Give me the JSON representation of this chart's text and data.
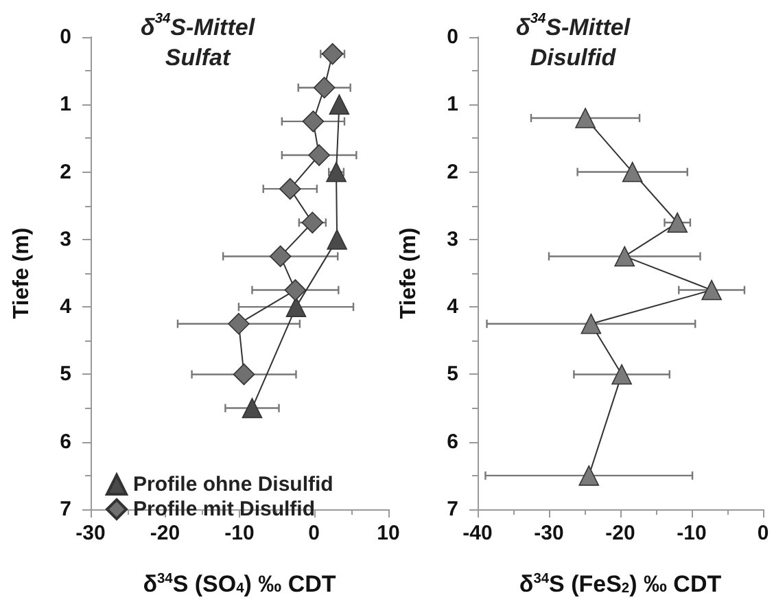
{
  "chart_data": [
    {
      "type": "line",
      "title": "δ$^{34}$S-Mittel",
      "subtitle": "Sulfat",
      "xlabel": "δ$^{34}$S (SO$_{4}$) ‰ CDT",
      "ylabel": "Tiefe (m)",
      "xlim": [
        -30,
        10
      ],
      "xticks": [
        -30,
        -20,
        -10,
        0,
        10
      ],
      "ylim": [
        7,
        0
      ],
      "yticks": [
        0,
        1,
        2,
        3,
        4,
        5,
        6,
        7
      ],
      "grid": false,
      "legend": "bottom left",
      "series": [
        {
          "name": "Profile ohne Disulfid",
          "color": "#4a4a4a",
          "marker": "triangle",
          "x": [
            3.4,
            3.0,
            3.1,
            -2.4,
            -8.3
          ],
          "values": [
            1.0,
            2.0,
            3.0,
            4.0,
            5.5
          ],
          "xerrors": [
            null,
            1.0,
            null,
            7.7,
            3.6
          ]
        },
        {
          "name": "Profile mit Disulfid",
          "color": "#707070",
          "marker": "diamond",
          "x": [
            2.5,
            1.4,
            -0.1,
            0.7,
            -3.2,
            -0.2,
            -4.5,
            -2.5,
            -10.1,
            -9.4
          ],
          "values": [
            0.25,
            0.75,
            1.25,
            1.75,
            2.25,
            2.75,
            3.25,
            3.75,
            4.25,
            5.0
          ],
          "xerrors": [
            1.6,
            3.5,
            4.2,
            5.0,
            3.6,
            1.8,
            7.7,
            5.8,
            8.2,
            7.0
          ]
        }
      ]
    },
    {
      "type": "line",
      "title": "δ$^{34}$S-Mittel",
      "subtitle": "Disulfid",
      "xlabel": "δ$^{34}$S (FeS$_{2}$) ‰ CDT",
      "ylabel": "Tiefe (m)",
      "xlim": [
        -40,
        0
      ],
      "xticks": [
        -40,
        -30,
        -20,
        -10,
        0
      ],
      "ylim": [
        7,
        0
      ],
      "yticks": [
        0,
        1,
        2,
        3,
        4,
        5,
        6,
        7
      ],
      "grid": false,
      "series": [
        {
          "color": "#7a7a7a",
          "marker": "triangle",
          "x": [
            -24.9,
            -18.3,
            -12.0,
            -19.4,
            -7.2,
            -24.1,
            -19.8,
            -24.4
          ],
          "values": [
            1.2,
            2.0,
            2.75,
            3.25,
            3.75,
            4.25,
            5.0,
            6.5
          ],
          "xerrors": [
            7.6,
            7.7,
            1.8,
            10.6,
            4.6,
            14.6,
            6.7,
            14.5
          ]
        }
      ]
    }
  ]
}
